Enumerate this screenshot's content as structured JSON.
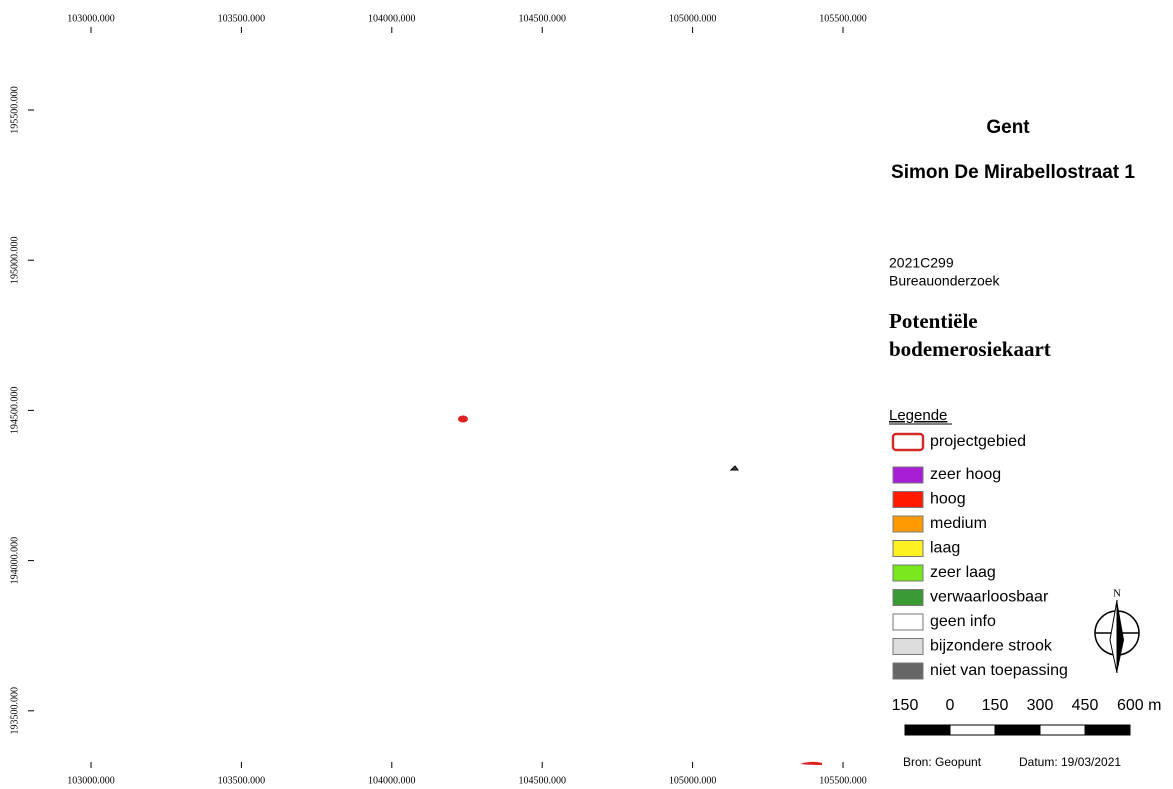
{
  "map": {
    "xticks": [
      "103000.000",
      "103500.000",
      "104000.000",
      "104500.000",
      "105000.000",
      "105500.000"
    ],
    "yticks": [
      "195500.000",
      "195000.000",
      "194500.000",
      "194000.000",
      "193500.000"
    ],
    "title": "Gent",
    "subtitle": "Simon De Mirabellostraat 1",
    "code": "2021C299",
    "study": "Bureauonderzoek",
    "map_title": [
      "Potentiële",
      "bodemerosiekaart"
    ],
    "legend": {
      "title": "Legende",
      "items": [
        {
          "label": "projectgebied",
          "color": "#d42a2a",
          "outline": true
        },
        {
          "label": "zeer hoog",
          "color": "#a61ed6"
        },
        {
          "label": "hoog",
          "color": "#ff1a00"
        },
        {
          "label": "medium",
          "color": "#ff9a00"
        },
        {
          "label": "laag",
          "color": "#fff021"
        },
        {
          "label": "zeer laag",
          "color": "#7ae81e"
        },
        {
          "label": "verwaarloosbaar",
          "color": "#3a9a34"
        },
        {
          "label": "geen info",
          "color": "#ffffff"
        },
        {
          "label": "bijzondere strook",
          "color": "#dcdcdc"
        },
        {
          "label": "niet van toepassing",
          "color": "#666666"
        }
      ]
    },
    "scale_labels": [
      "150",
      "0",
      "150",
      "300",
      "450",
      "600 m"
    ],
    "north": "N",
    "source": "Bron: Geopunt",
    "date": "Datum: 19/03/2021"
  }
}
